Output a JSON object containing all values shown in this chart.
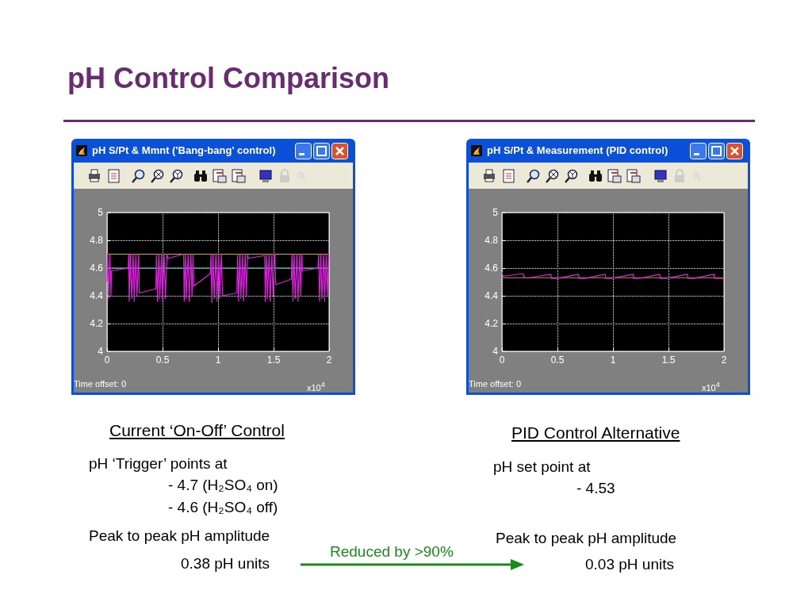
{
  "chart_data": [
    {
      "type": "line",
      "title": "pH S/Pt & Mmnt ('Bang-bang' control)",
      "xlim": [
        0,
        2
      ],
      "xticks": [
        0,
        0.5,
        1,
        1.5,
        2
      ],
      "ylim": [
        4,
        5
      ],
      "yticks": [
        4,
        4.2,
        4.4,
        4.6,
        4.8,
        5
      ],
      "grid": true,
      "marker": "none",
      "series": [
        {
          "color": "#c8b428",
          "x": [
            0,
            2
          ],
          "values": [
            4.7,
            4.7
          ]
        },
        {
          "color": "#40d8d0",
          "x": [
            0,
            2
          ],
          "values": [
            4.6,
            4.6
          ]
        },
        {
          "color": "#e020e0",
          "x": [
            0,
            0.005,
            0.015,
            0.025,
            0.035,
            0.04,
            0.19,
            0.195,
            0.2,
            0.21,
            0.22,
            0.235,
            0.245,
            0.26,
            0.27,
            0.285,
            0.29,
            0.44,
            0.445,
            0.455,
            0.465,
            0.475,
            0.49,
            0.5,
            0.515,
            0.525,
            0.54,
            0.55,
            0.69,
            0.695,
            0.705,
            0.715,
            0.73,
            0.74,
            0.755,
            0.765,
            0.775,
            0.78,
            0.93,
            0.935,
            0.945,
            0.955,
            0.965,
            0.98,
            0.99,
            1.005,
            1.015,
            1.03,
            1.04,
            1.17,
            1.175,
            1.185,
            1.195,
            1.205,
            1.22,
            1.23,
            1.245,
            1.255,
            1.265,
            1.27,
            1.42,
            1.425,
            1.435,
            1.445,
            1.46,
            1.47,
            1.485,
            1.495,
            1.51,
            1.52,
            1.66,
            1.665,
            1.675,
            1.685,
            1.695,
            1.71,
            1.72,
            1.735,
            1.745,
            1.755,
            1.76,
            1.9,
            1.905,
            1.915,
            1.925,
            1.935,
            1.95,
            1.96,
            1.975,
            1.985,
            1.995,
            2
          ],
          "values": [
            4.5,
            4.7,
            4.38,
            4.7,
            4.4,
            4.58,
            4.6,
            4.7,
            4.36,
            4.7,
            4.38,
            4.7,
            4.36,
            4.7,
            4.4,
            4.7,
            4.42,
            4.45,
            4.7,
            4.36,
            4.7,
            4.38,
            4.7,
            4.36,
            4.7,
            4.38,
            4.7,
            4.67,
            4.7,
            4.36,
            4.7,
            4.38,
            4.7,
            4.36,
            4.7,
            4.4,
            4.7,
            4.47,
            4.56,
            4.7,
            4.35,
            4.7,
            4.38,
            4.7,
            4.36,
            4.7,
            4.38,
            4.7,
            4.4,
            4.42,
            4.7,
            4.36,
            4.7,
            4.38,
            4.7,
            4.36,
            4.7,
            4.4,
            4.7,
            4.67,
            4.69,
            4.36,
            4.7,
            4.38,
            4.7,
            4.36,
            4.7,
            4.4,
            4.7,
            4.48,
            4.52,
            4.7,
            4.36,
            4.7,
            4.38,
            4.7,
            4.36,
            4.7,
            4.4,
            4.7,
            4.58,
            4.6,
            4.7,
            4.36,
            4.7,
            4.38,
            4.7,
            4.36,
            4.7,
            4.4,
            4.7,
            4.68
          ]
        }
      ],
      "annotations": [
        "pH Control Comparison",
        "x10$^{4}$",
        "Time offset:  0",
        "Current ‘On-Off’ Control",
        "pH ‘Trigger’ points at",
        "- 4.7 (H₂SO₄ on)",
        "- 4.6 (H₂SO₄ off)",
        "Peak to peak pH amplitude",
        "0.38 pH units",
        "Reduced by >90%"
      ]
    },
    {
      "type": "line",
      "title": "pH S/Pt & Measurement (PID control)",
      "xlim": [
        0,
        2
      ],
      "xticks": [
        0,
        0.5,
        1,
        1.5,
        2
      ],
      "ylim": [
        4,
        5
      ],
      "yticks": [
        4,
        4.2,
        4.4,
        4.6,
        4.8,
        5
      ],
      "grid": true,
      "marker": "none",
      "series": [
        {
          "color": "#a8a030",
          "x": [
            0,
            2
          ],
          "values": [
            4.53,
            4.53
          ]
        },
        {
          "color": "#e020e0",
          "x": [
            0,
            0.01,
            0.19,
            0.2,
            0.25,
            0.44,
            0.445,
            0.5,
            0.69,
            0.695,
            0.75,
            0.93,
            0.935,
            0.99,
            1.18,
            1.185,
            1.24,
            1.42,
            1.425,
            1.48,
            1.67,
            1.675,
            1.73,
            1.91,
            1.915,
            2
          ],
          "values": [
            4.57,
            4.54,
            4.56,
            4.53,
            4.53,
            4.555,
            4.525,
            4.525,
            4.555,
            4.525,
            4.525,
            4.555,
            4.525,
            4.525,
            4.555,
            4.525,
            4.525,
            4.555,
            4.525,
            4.525,
            4.555,
            4.525,
            4.525,
            4.555,
            4.525,
            4.525
          ]
        }
      ],
      "annotations": [
        "x10$^{4}$",
        "Time offset:  0",
        "PID Control Alternative",
        "pH set point at",
        "- 4.53",
        "Peak to peak pH amplitude",
        "0.03 pH units"
      ]
    }
  ]
}
